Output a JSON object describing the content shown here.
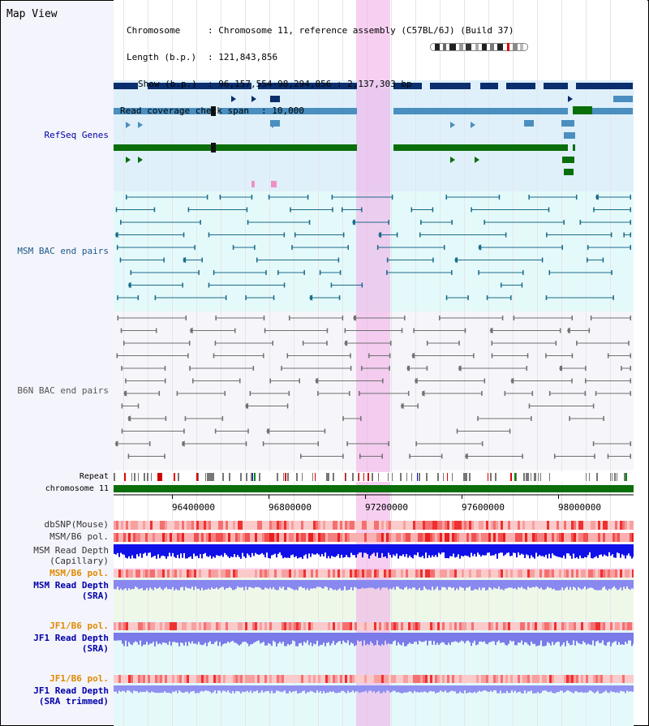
{
  "map_title": "Map View",
  "info": {
    "chromosome_key": "Chromosome",
    "chromosome_val": ": Chromosome 11, reference assembly (C57BL/6J) (Build 37)",
    "length_key": "Length (b.p.)",
    "length_val": ": 121,843,856",
    "show_key": "Show (b.p.)",
    "show_val": ": 96,157,554-98,294,856 : 2,137,303 bp",
    "coverage_key": "Read coverage check span",
    "coverage_val": ": 10,000"
  },
  "tracks": {
    "refseq": "RefSeq Genes",
    "msm_bac": "MSM BAC end pairs",
    "b6n_bac": "B6N BAC end pairs",
    "repeat": "Repeat",
    "chromosome": "chromosome 11",
    "dbsnp": "dbSNP(Mouse)",
    "msm_b6_pol_1": "MSM/B6 pol.",
    "msm_depth_cap_1": "MSM Read Depth",
    "msm_depth_cap_2": "(Capillary)",
    "msm_b6_pol_2": "MSM/B6 pol.",
    "msm_depth_sra_1": "MSM Read Depth",
    "msm_depth_sra_2": "(SRA)",
    "jf1_b6_pol_1": "JF1/B6 pol.",
    "jf1_depth_sra_1": "JF1 Read Depth",
    "jf1_depth_sra_2": "(SRA)",
    "jf1_b6_pol_2": "JF1/B6 pol.",
    "jf1_depth_trim_1": "JF1 Read Depth",
    "jf1_depth_trim_2": "(SRA trimmed)"
  },
  "axis_ticks": [
    "96400000",
    "96800000",
    "97200000",
    "97600000",
    "98000000"
  ],
  "colors": {
    "refseq_dark": "#0a2e6e",
    "refseq_mid": "#4a8fbf",
    "refseq_green": "#0a6e0a",
    "msm_bac": "#1a6a8a",
    "b6n_bac": "#707070",
    "highlight": "#f0aae6",
    "chromosome": "#0a6e0a",
    "label_blue": "#0000aa",
    "label_orange": "#e08a00"
  }
}
